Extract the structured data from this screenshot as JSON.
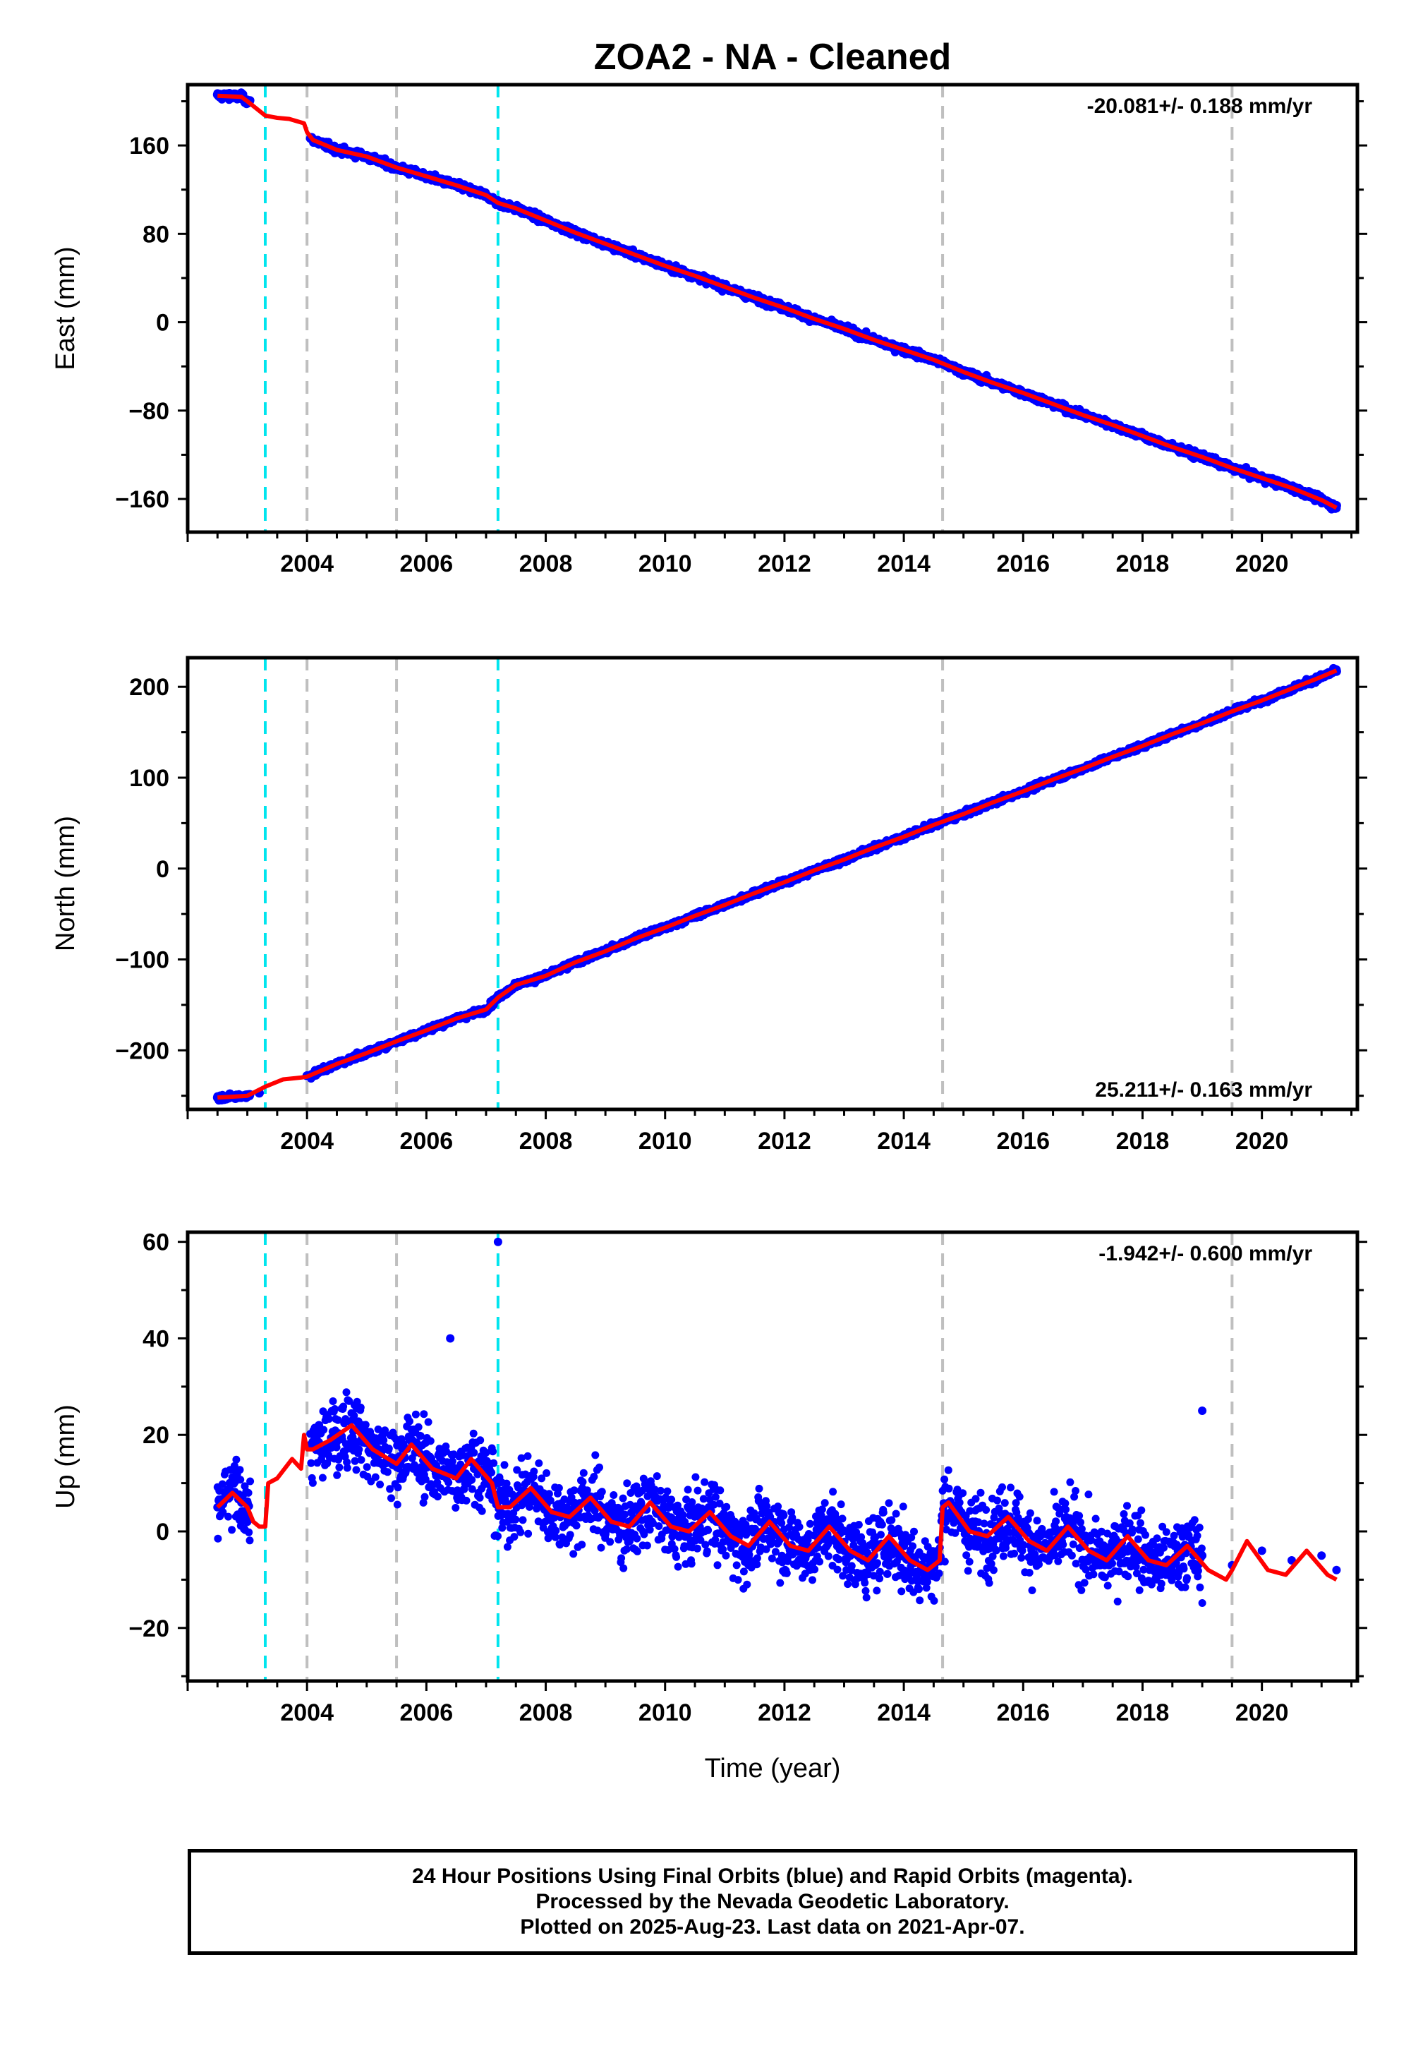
{
  "title": "ZOA2  - NA - Cleaned",
  "x_axis_title": "Time (year)",
  "colors": {
    "data_points": "#0000ff",
    "model_line": "#ff0000",
    "equipment_change_lines": "#00e5ee",
    "earthquake_lines": "#bfbfbf",
    "frame": "#000000"
  },
  "footer": {
    "line1": "24 Hour Positions Using Final Orbits (blue) and Rapid Orbits (magenta).",
    "line2": "Processed by the Nevada Geodetic Laboratory.",
    "line3": "Plotted on 2025-Aug-23. Last data on 2021-Apr-07."
  },
  "chart_data": [
    {
      "type": "scatter",
      "ylabel": "East (mm)",
      "xlabel": "",
      "xlim": [
        2002.0,
        2021.6
      ],
      "ylim": [
        -190,
        215
      ],
      "x_ticks": [
        2004,
        2006,
        2008,
        2010,
        2012,
        2014,
        2016,
        2018,
        2020
      ],
      "y_ticks": [
        -160,
        -80,
        0,
        80,
        160
      ],
      "rate_label": "-20.081+/- 0.188 mm/yr",
      "rate_position": "top-right",
      "cyan_dashed_lines": [
        2003.3,
        2007.2
      ],
      "gray_dashed_lines": [
        2004.0,
        2005.5,
        2014.65,
        2019.5
      ],
      "series": [
        {
          "kind": "observations",
          "x": [
            2002.5,
            2002.7,
            2002.9,
            2003.0,
            2004.1,
            2004.5,
            2005.0,
            2005.5,
            2006.0,
            2006.5,
            2007.0,
            2007.2,
            2007.5,
            2008.0,
            2008.5,
            2009.0,
            2009.5,
            2010.0,
            2010.5,
            2011.0,
            2011.5,
            2012.0,
            2012.5,
            2013.0,
            2013.5,
            2014.0,
            2014.5,
            2015.0,
            2015.5,
            2016.0,
            2016.5,
            2017.0,
            2017.5,
            2018.0,
            2018.5,
            2019.0,
            2019.5,
            2020.0,
            2020.5,
            2021.0,
            2021.25
          ],
          "values": [
            206,
            207,
            205,
            201,
            165,
            156,
            150,
            140,
            132,
            124,
            115,
            110,
            103,
            92,
            81,
            71,
            61,
            51,
            42,
            32,
            22,
            13,
            3,
            -6,
            -16,
            -25,
            -34,
            -45,
            -55,
            -64,
            -74,
            -84,
            -93,
            -103,
            -113,
            -122,
            -132,
            -141,
            -150,
            -161,
            -166
          ]
        },
        {
          "kind": "model",
          "x": [
            2002.5,
            2002.9,
            2003.0,
            2003.3,
            2003.5,
            2003.7,
            2003.95,
            2004.0,
            2004.1,
            2004.5,
            2005.0,
            2005.5,
            2006.0,
            2006.5,
            2007.0,
            2007.2,
            2007.5,
            2008.0,
            2008.5,
            2009.0,
            2009.5,
            2010.0,
            2010.5,
            2011.0,
            2011.5,
            2012.0,
            2012.5,
            2013.0,
            2013.5,
            2014.0,
            2014.5,
            2015.0,
            2015.5,
            2016.0,
            2016.5,
            2017.0,
            2017.5,
            2018.0,
            2018.5,
            2019.0,
            2019.5,
            2020.0,
            2020.5,
            2021.0,
            2021.25
          ],
          "values": [
            205,
            204,
            200,
            187,
            185,
            184,
            180,
            172,
            165,
            156,
            150,
            140,
            132,
            124,
            115,
            108,
            103,
            92,
            81,
            71,
            61,
            51,
            42,
            32,
            22,
            13,
            3,
            -6,
            -16,
            -25,
            -34,
            -45,
            -55,
            -64,
            -74,
            -84,
            -93,
            -103,
            -113,
            -122,
            -132,
            -141,
            -150,
            -161,
            -168
          ]
        }
      ]
    },
    {
      "type": "scatter",
      "ylabel": "North (mm)",
      "xlabel": "",
      "xlim": [
        2002.0,
        2021.6
      ],
      "ylim": [
        -265,
        232
      ],
      "x_ticks": [
        2004,
        2006,
        2008,
        2010,
        2012,
        2014,
        2016,
        2018,
        2020
      ],
      "y_ticks": [
        -200,
        -100,
        0,
        100,
        200
      ],
      "rate_label": "25.211+/- 0.163 mm/yr",
      "rate_position": "bottom-right",
      "cyan_dashed_lines": [
        2003.3,
        2007.2
      ],
      "gray_dashed_lines": [
        2004.0,
        2005.5,
        2014.65,
        2019.5
      ],
      "series": [
        {
          "kind": "observations",
          "x": [
            2002.5,
            2002.8,
            2003.0,
            2003.2,
            2004.0,
            2004.5,
            2005.0,
            2005.5,
            2006.0,
            2006.5,
            2007.0,
            2007.2,
            2007.5,
            2008.0,
            2008.5,
            2009.0,
            2009.5,
            2010.0,
            2010.5,
            2011.0,
            2011.5,
            2012.0,
            2012.5,
            2013.0,
            2013.5,
            2014.0,
            2014.5,
            2015.0,
            2015.5,
            2016.0,
            2016.5,
            2017.0,
            2017.5,
            2018.0,
            2018.5,
            2019.0,
            2019.5,
            2020.0,
            2020.5,
            2021.0,
            2021.25
          ],
          "values": [
            -252,
            -253,
            -251,
            -247,
            -228,
            -215,
            -203,
            -190,
            -178,
            -165,
            -155,
            -140,
            -130,
            -118,
            -103,
            -91,
            -77,
            -65,
            -52,
            -40,
            -27,
            -15,
            -2,
            10,
            23,
            35,
            48,
            60,
            73,
            85,
            98,
            110,
            123,
            135,
            148,
            160,
            173,
            185,
            198,
            211,
            217
          ]
        },
        {
          "kind": "model",
          "x": [
            2002.5,
            2003.0,
            2003.3,
            2003.6,
            2003.9,
            2004.0,
            2004.5,
            2005.0,
            2005.5,
            2006.0,
            2006.5,
            2007.0,
            2007.2,
            2007.5,
            2008.0,
            2008.5,
            2009.0,
            2009.5,
            2010.0,
            2010.5,
            2011.0,
            2011.5,
            2012.0,
            2012.5,
            2013.0,
            2013.5,
            2014.0,
            2014.5,
            2015.0,
            2015.5,
            2016.0,
            2016.5,
            2017.0,
            2017.5,
            2018.0,
            2018.5,
            2019.0,
            2019.5,
            2020.0,
            2020.5,
            2021.0,
            2021.25
          ],
          "values": [
            -252,
            -250,
            -240,
            -232,
            -230,
            -229,
            -215,
            -203,
            -190,
            -178,
            -165,
            -155,
            -142,
            -128,
            -118,
            -103,
            -91,
            -77,
            -65,
            -52,
            -40,
            -27,
            -15,
            -2,
            10,
            23,
            35,
            48,
            60,
            73,
            85,
            98,
            110,
            123,
            135,
            148,
            160,
            173,
            185,
            198,
            211,
            218
          ]
        }
      ]
    },
    {
      "type": "scatter",
      "ylabel": "Up (mm)",
      "xlabel": "Time (year)",
      "xlim": [
        2002.0,
        2021.6
      ],
      "ylim": [
        -31,
        62
      ],
      "x_ticks": [
        2004,
        2006,
        2008,
        2010,
        2012,
        2014,
        2016,
        2018,
        2020
      ],
      "y_ticks": [
        -20,
        0,
        20,
        40,
        60
      ],
      "rate_label": "-1.942+/- 0.600 mm/yr",
      "rate_position": "top-right",
      "cyan_dashed_lines": [
        2003.3,
        2007.2
      ],
      "gray_dashed_lines": [
        2004.0,
        2005.5,
        2014.65,
        2019.5
      ],
      "series": [
        {
          "kind": "observations",
          "x": [
            2002.5,
            2002.7,
            2002.9,
            2003.0,
            2004.2,
            2004.5,
            2004.8,
            2005.2,
            2005.6,
            2006.0,
            2006.4,
            2006.8,
            2007.2,
            2007.6,
            2008.0,
            2008.5,
            2009.0,
            2009.5,
            2010.0,
            2010.5,
            2011.0,
            2011.5,
            2012.0,
            2012.5,
            2013.0,
            2013.5,
            2014.0,
            2014.5,
            2014.8,
            2015.2,
            2015.6,
            2016.0,
            2016.5,
            2017.0,
            2017.5,
            2018.0,
            2018.5,
            2019.0,
            2019.5,
            2020.0,
            2020.5,
            2021.0,
            2021.25,
            2006.4,
            2007.2,
            2019.0
          ],
          "values": [
            5,
            7,
            6,
            2,
            22,
            20,
            21,
            17,
            15,
            16,
            14,
            13,
            10,
            8,
            5,
            3,
            4,
            2,
            3,
            1,
            0,
            -2,
            -1,
            -3,
            -4,
            -5,
            -3,
            -6,
            4,
            2,
            1,
            0,
            -2,
            -3,
            -5,
            -4,
            -6,
            -5,
            -7,
            -4,
            -6,
            -5,
            -8,
            40,
            60,
            25
          ]
        },
        {
          "kind": "model",
          "x": [
            2002.5,
            2002.75,
            2003.0,
            2003.1,
            2003.2,
            2003.3,
            2003.35,
            2003.5,
            2003.75,
            2003.9,
            2003.95,
            2004.0,
            2004.1,
            2004.4,
            2004.75,
            2005.1,
            2005.5,
            2005.75,
            2006.1,
            2006.5,
            2006.75,
            2007.1,
            2007.2,
            2007.4,
            2007.75,
            2008.1,
            2008.4,
            2008.75,
            2009.1,
            2009.4,
            2009.75,
            2010.1,
            2010.4,
            2010.75,
            2011.1,
            2011.4,
            2011.75,
            2012.1,
            2012.4,
            2012.75,
            2013.1,
            2013.4,
            2013.75,
            2014.1,
            2014.4,
            2014.6,
            2014.65,
            2014.75,
            2015.1,
            2015.4,
            2015.75,
            2016.1,
            2016.4,
            2016.75,
            2017.1,
            2017.4,
            2017.75,
            2018.1,
            2018.4,
            2018.75,
            2019.1,
            2019.4,
            2019.5,
            2019.75,
            2020.1,
            2020.4,
            2020.75,
            2021.1,
            2021.25
          ],
          "values": [
            5,
            8,
            5,
            2,
            1,
            1,
            10,
            11,
            15,
            13,
            20,
            17,
            17,
            19,
            22,
            17,
            14,
            18,
            13,
            11,
            15,
            10,
            5,
            5,
            9,
            4,
            3,
            7,
            2,
            1,
            6,
            1,
            0,
            4,
            -1,
            -3,
            2,
            -3,
            -4,
            1,
            -4,
            -6,
            -1,
            -6,
            -8,
            -6,
            5,
            6,
            0,
            -1,
            3,
            -2,
            -4,
            1,
            -4,
            -6,
            -1,
            -6,
            -7,
            -3,
            -8,
            -10,
            -8,
            -2,
            -8,
            -9,
            -4,
            -9,
            -10
          ]
        }
      ]
    }
  ]
}
